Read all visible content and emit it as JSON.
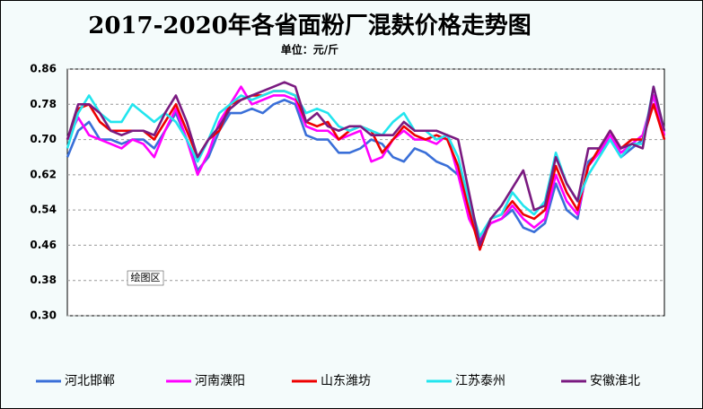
{
  "chart_data": {
    "type": "line",
    "title": "2017-2020年各省面粉厂混麸价格走势图",
    "subtitle": "单位：元/斤",
    "annotations": [
      "绘图区"
    ],
    "categories": [
      null,
      null,
      null,
      null,
      null,
      null,
      null,
      null,
      null,
      null,
      null,
      null,
      null,
      null,
      null,
      null,
      null,
      null,
      null,
      null,
      null,
      null,
      null,
      null,
      null,
      null,
      null,
      null,
      null,
      null,
      null,
      null,
      null,
      null,
      null,
      null,
      null,
      null,
      null,
      null,
      null,
      null,
      null,
      null,
      null,
      null,
      null,
      null,
      null,
      null,
      null,
      null,
      null,
      null,
      null,
      null
    ],
    "ylim": [
      0.3,
      0.86
    ],
    "yticks": [
      {
        "value": 0.3,
        "label": "0.30"
      },
      0.38,
      0.46,
      0.54,
      0.62,
      {
        "value": 0.7,
        "label": "0.70"
      },
      0.78,
      0.86
    ],
    "grid": true,
    "legend": "bottom",
    "series": [
      {
        "name": "河北邯郸",
        "color": "#3a6fd8",
        "values": [
          0.66,
          0.72,
          0.74,
          0.7,
          0.7,
          0.69,
          0.7,
          0.7,
          0.68,
          0.72,
          0.76,
          0.7,
          0.63,
          0.66,
          0.72,
          0.76,
          0.76,
          0.77,
          0.76,
          0.78,
          0.79,
          0.78,
          0.71,
          0.7,
          0.7,
          0.67,
          0.67,
          0.68,
          0.7,
          0.69,
          0.66,
          0.65,
          0.68,
          0.67,
          0.65,
          0.64,
          0.62,
          0.56,
          0.47,
          0.51,
          0.52,
          0.54,
          0.5,
          0.49,
          0.51,
          0.6,
          0.54,
          0.52,
          0.65,
          0.67,
          0.7,
          0.66,
          0.68,
          0.7,
          0.8,
          0.7
        ]
      },
      {
        "name": "河南濮阳",
        "color": "#ff00ff",
        "values": [
          0.7,
          0.75,
          0.71,
          0.7,
          0.69,
          0.68,
          0.7,
          0.69,
          0.66,
          0.72,
          0.77,
          0.7,
          0.62,
          0.67,
          0.74,
          0.78,
          0.82,
          0.78,
          0.79,
          0.8,
          0.8,
          0.79,
          0.73,
          0.72,
          0.72,
          0.7,
          0.71,
          0.72,
          0.65,
          0.66,
          0.7,
          0.72,
          0.7,
          0.7,
          0.69,
          0.71,
          0.62,
          0.52,
          0.47,
          0.51,
          0.52,
          0.55,
          0.52,
          0.5,
          0.52,
          0.62,
          0.56,
          0.53,
          0.64,
          0.67,
          0.71,
          0.67,
          0.69,
          0.71,
          0.8,
          0.71
        ]
      },
      {
        "name": "山东潍坊",
        "color": "#ee0000",
        "values": [
          0.7,
          0.77,
          0.78,
          0.74,
          0.72,
          0.72,
          0.72,
          0.72,
          0.7,
          0.74,
          0.78,
          0.72,
          0.66,
          0.7,
          0.72,
          0.78,
          0.79,
          0.8,
          0.8,
          0.81,
          0.81,
          0.8,
          0.74,
          0.73,
          0.74,
          0.7,
          0.72,
          0.73,
          0.72,
          0.67,
          0.7,
          0.73,
          0.71,
          0.7,
          0.71,
          0.7,
          0.64,
          0.54,
          0.45,
          0.52,
          0.53,
          0.56,
          0.53,
          0.52,
          0.54,
          0.64,
          0.58,
          0.54,
          0.64,
          0.68,
          0.72,
          0.68,
          0.7,
          0.7,
          0.78,
          0.7
        ]
      },
      {
        "name": "江苏泰州",
        "color": "#22e5ee",
        "values": [
          0.68,
          0.76,
          0.8,
          0.76,
          0.74,
          0.74,
          0.78,
          0.76,
          0.74,
          0.76,
          0.74,
          0.7,
          0.65,
          0.7,
          0.76,
          0.78,
          0.8,
          0.79,
          0.8,
          0.81,
          0.81,
          0.8,
          0.76,
          0.77,
          0.76,
          0.73,
          0.72,
          0.73,
          0.72,
          0.71,
          0.74,
          0.76,
          0.72,
          0.72,
          0.7,
          0.71,
          0.66,
          0.56,
          0.48,
          0.52,
          0.53,
          0.58,
          0.55,
          0.53,
          0.56,
          0.67,
          0.6,
          0.56,
          0.62,
          0.66,
          0.7,
          0.66,
          0.69,
          0.69,
          0.82,
          0.72
        ]
      },
      {
        "name": "安徽淮北",
        "color": "#7a1a80",
        "values": [
          0.7,
          0.78,
          0.78,
          0.76,
          0.72,
          0.71,
          0.72,
          0.72,
          0.71,
          0.76,
          0.8,
          0.74,
          0.66,
          0.7,
          0.73,
          0.77,
          0.79,
          0.8,
          0.81,
          0.82,
          0.83,
          0.82,
          0.74,
          0.76,
          0.73,
          0.72,
          0.73,
          0.73,
          0.71,
          0.71,
          0.71,
          0.74,
          0.72,
          0.72,
          0.72,
          0.71,
          0.7,
          0.58,
          0.46,
          0.52,
          0.55,
          0.59,
          0.63,
          0.54,
          0.55,
          0.66,
          0.6,
          0.56,
          0.68,
          0.68,
          0.72,
          0.68,
          0.69,
          0.68,
          0.82,
          0.72
        ]
      }
    ]
  }
}
